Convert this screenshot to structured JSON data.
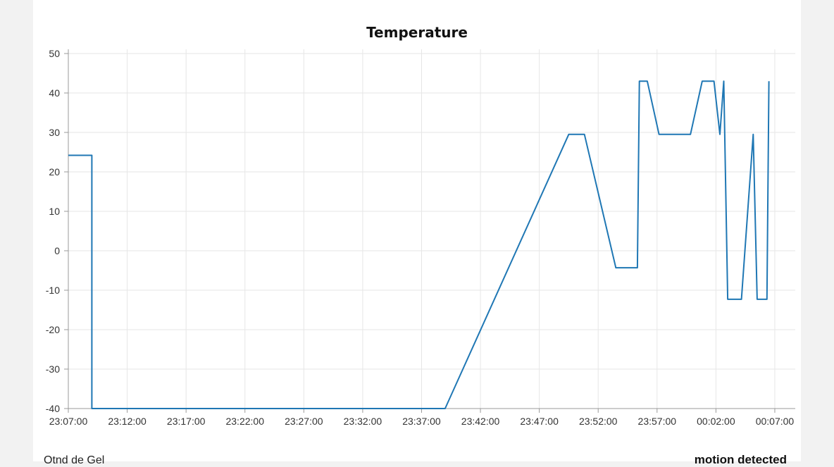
{
  "chart_data": {
    "type": "line",
    "title": "Temperature",
    "xlabel": "",
    "ylabel": "",
    "ylim": [
      -40,
      50
    ],
    "yticks": [
      50,
      40,
      30,
      20,
      10,
      0,
      -10,
      -20,
      -30,
      -40
    ],
    "xticks": [
      "23:07:00",
      "23:12:00",
      "23:17:00",
      "23:22:00",
      "23:27:00",
      "23:32:00",
      "23:37:00",
      "23:42:00",
      "23:47:00",
      "23:52:00",
      "23:57:00",
      "00:02:00",
      "00:07:00"
    ],
    "xlim_minutes": [
      0,
      60
    ],
    "grid": true,
    "color": "#1f77b4",
    "series": [
      {
        "name": "",
        "x": [
          "23:07:00",
          "23:09:00",
          "23:09:00",
          "23:39:00",
          "23:49:30",
          "23:50:50",
          "23:53:30",
          "23:55:20",
          "23:55:30",
          "23:56:10",
          "23:57:10",
          "23:59:50",
          "00:00:50",
          "00:01:50",
          "00:02:20",
          "00:02:40",
          "00:03:00",
          "00:04:10",
          "00:05:10",
          "00:05:30",
          "00:06:20",
          "00:06:30"
        ],
        "values": [
          24.2,
          24.2,
          -40,
          -40,
          29.5,
          29.5,
          -4.3,
          -4.3,
          43,
          43,
          29.5,
          29.5,
          43,
          43,
          29.5,
          43,
          -12.3,
          -12.3,
          29.5,
          -12.3,
          -12.3,
          43
        ]
      }
    ]
  },
  "footer": {
    "left_label": "Otnd de Gel",
    "right_label": "motion detected"
  }
}
